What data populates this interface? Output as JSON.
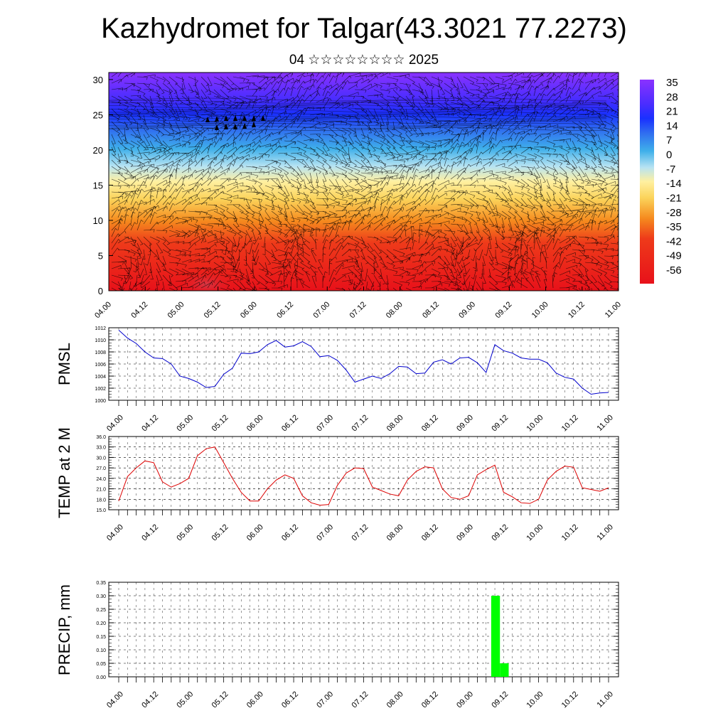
{
  "title": "Kazhydromet for Talgar(43.3021 77.2273)",
  "subtitle": "04 ☆☆☆☆☆☆☆☆ 2025",
  "time_labels": [
    "04.00",
    "04.12",
    "05.00",
    "05.12",
    "06.00",
    "06.12",
    "07.00",
    "07.12",
    "08.00",
    "08.12",
    "09.00",
    "09.12",
    "10.00",
    "10.12",
    "11.00"
  ],
  "chart_data": [
    {
      "type": "heatmap",
      "description_role": "cross-section temperature field with wind barbs",
      "y_ticks": [
        0,
        5,
        10,
        15,
        20,
        25,
        30
      ],
      "ylim": [
        0,
        31
      ],
      "colorbar_labels": [
        "35",
        "28",
        "21",
        "14",
        "7",
        "0",
        "-7",
        "-14",
        "-21",
        "-28",
        "-35",
        "-42",
        "-49",
        "-56"
      ],
      "colors": {
        "warm": "#e8111a",
        "orange": "#f5a623",
        "yellow": "#ffe97a",
        "lightblue": "#a8dcf0",
        "blue": "#2ea8e8",
        "deepblue": "#1a3cff",
        "violet": "#8a30ff"
      }
    },
    {
      "type": "line",
      "ylabel": "PMSL",
      "ylim": [
        1000,
        1012
      ],
      "y_ticks": [
        "1000",
        "1002",
        "1004",
        "1006",
        "1008",
        "1010",
        "1012"
      ],
      "color": "#0000cc",
      "x": [
        0,
        3,
        6,
        9,
        12,
        15,
        18,
        21,
        24,
        27,
        30,
        33,
        36,
        39,
        42,
        45,
        48,
        51,
        54,
        57,
        60,
        63,
        66,
        69,
        72,
        75,
        78,
        81,
        84,
        87,
        90,
        93,
        96,
        99,
        102,
        105,
        108,
        111,
        114,
        117,
        120,
        123,
        126,
        129,
        132,
        135,
        138,
        141,
        144,
        147,
        150,
        153,
        156,
        159,
        162,
        165,
        168
      ],
      "values": [
        1011.6,
        1010.3,
        1009.4,
        1008,
        1007,
        1006.9,
        1006,
        1004,
        1003.6,
        1003,
        1002.1,
        1002.3,
        1004.3,
        1005.3,
        1007.8,
        1007.7,
        1008,
        1009.2,
        1009.9,
        1008.8,
        1009,
        1009.7,
        1008.9,
        1007.2,
        1007.4,
        1006.6,
        1005,
        1003,
        1003.5,
        1004,
        1003.6,
        1004.4,
        1005.6,
        1005.5,
        1004.4,
        1004.5,
        1006.3,
        1006.7,
        1006,
        1007,
        1007.1,
        1006.2,
        1004.6,
        1009.2,
        1008.2,
        1007.8,
        1007,
        1006.8,
        1006.8,
        1006.2,
        1004.5,
        1003.8,
        1003.5,
        1002,
        1001,
        1001.2,
        1001.3
      ]
    },
    {
      "type": "line",
      "ylabel": "TEMP at 2 M",
      "ylim": [
        15,
        36
      ],
      "y_ticks": [
        "15.0",
        "18.0",
        "21.0",
        "24.0",
        "27.0",
        "30.0",
        "33.0",
        "36.0"
      ],
      "color": "#dd0000",
      "x": [
        0,
        3,
        6,
        9,
        12,
        15,
        18,
        21,
        24,
        27,
        30,
        33,
        36,
        39,
        42,
        45,
        48,
        51,
        54,
        57,
        60,
        63,
        66,
        69,
        72,
        75,
        78,
        81,
        84,
        87,
        90,
        93,
        96,
        99,
        102,
        105,
        108,
        111,
        114,
        117,
        120,
        123,
        126,
        129,
        132,
        135,
        138,
        141,
        144,
        147,
        150,
        153,
        156,
        159,
        162,
        165,
        168
      ],
      "values": [
        17.5,
        24.5,
        27,
        29,
        28.5,
        23,
        21.5,
        22.5,
        24,
        30.5,
        32.5,
        33,
        28.5,
        24,
        20,
        17.5,
        17.5,
        21,
        23.5,
        25,
        24,
        19,
        17,
        16.3,
        16.5,
        22,
        25.5,
        27,
        26.8,
        21.5,
        20.5,
        19.5,
        19,
        23.5,
        26,
        27.3,
        27,
        21,
        18.5,
        18,
        19,
        25,
        26.5,
        27.8,
        20,
        18.7,
        17,
        16.8,
        18,
        23.5,
        26,
        27.5,
        27.2,
        21.3,
        20.8,
        20.3,
        21.3
      ]
    },
    {
      "type": "bar",
      "ylabel": "PRECIP, mm",
      "ylim": [
        0,
        0.35
      ],
      "y_ticks": [
        "0.00",
        "0.05",
        "0.10",
        "0.15",
        "0.20",
        "0.25",
        "0.30",
        "0.35"
      ],
      "color": "#00ff00",
      "x": [
        129,
        132
      ],
      "values": [
        0.3,
        0.05
      ]
    }
  ]
}
